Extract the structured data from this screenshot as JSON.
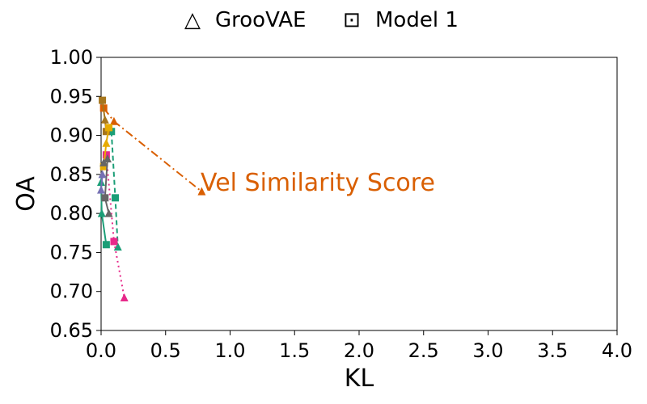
{
  "chart_data": {
    "type": "scatter",
    "xlabel": "KL",
    "ylabel": "OA",
    "xlim": [
      0.0,
      4.0
    ],
    "ylim": [
      0.65,
      1.0
    ],
    "xticks": [
      "0.0",
      "0.5",
      "1.0",
      "1.5",
      "2.0",
      "2.5",
      "3.0",
      "3.5",
      "4.0"
    ],
    "yticks": [
      "0.65",
      "0.70",
      "0.75",
      "0.80",
      "0.85",
      "0.90",
      "0.95",
      "1.00"
    ],
    "grid": false,
    "legend_position": "top-center",
    "legend": [
      {
        "symbol": "△",
        "label": "GrooVAE"
      },
      {
        "symbol": "⊡",
        "label": "Model 1"
      }
    ],
    "annotation": {
      "text": "Vel Similarity Score",
      "color": "#d95f02"
    },
    "series": [
      {
        "color": "#d95f02",
        "dash": "10,4,2,4",
        "points": [
          {
            "x": 0.02,
            "y": 0.935,
            "m": "s"
          },
          {
            "x": 0.1,
            "y": 0.918,
            "m": "t"
          },
          {
            "x": 0.78,
            "y": 0.828,
            "m": "t"
          }
        ]
      },
      {
        "color": "#1b9e77",
        "dash": "",
        "points": [
          {
            "x": 0.0,
            "y": 0.84,
            "m": "t"
          },
          {
            "x": 0.005,
            "y": 0.8,
            "m": "t"
          },
          {
            "x": 0.04,
            "y": 0.76,
            "m": "s"
          }
        ]
      },
      {
        "color": "#1b9e77",
        "dash": "6,4",
        "points": [
          {
            "x": 0.08,
            "y": 0.905,
            "m": "s"
          },
          {
            "x": 0.11,
            "y": 0.82,
            "m": "s"
          },
          {
            "x": 0.13,
            "y": 0.757,
            "m": "t"
          }
        ]
      },
      {
        "color": "#e7298a",
        "dash": "2,4",
        "points": [
          {
            "x": 0.04,
            "y": 0.875,
            "m": "s"
          },
          {
            "x": 0.1,
            "y": 0.764,
            "m": "s"
          },
          {
            "x": 0.18,
            "y": 0.692,
            "m": "t"
          }
        ]
      },
      {
        "color": "#a6761d",
        "dash": "",
        "points": [
          {
            "x": 0.01,
            "y": 0.945,
            "m": "s"
          },
          {
            "x": 0.03,
            "y": 0.92,
            "m": "t"
          },
          {
            "x": 0.04,
            "y": 0.905,
            "m": "s"
          }
        ]
      },
      {
        "color": "#e6ab02",
        "dash": "",
        "points": [
          {
            "x": 0.02,
            "y": 0.86,
            "m": "s"
          },
          {
            "x": 0.04,
            "y": 0.89,
            "m": "t"
          },
          {
            "x": 0.06,
            "y": 0.91,
            "m": "s"
          }
        ]
      },
      {
        "color": "#666666",
        "dash": "",
        "points": [
          {
            "x": 0.02,
            "y": 0.865,
            "m": "t"
          },
          {
            "x": 0.05,
            "y": 0.87,
            "m": "t"
          },
          {
            "x": 0.03,
            "y": 0.82,
            "m": "s"
          },
          {
            "x": 0.06,
            "y": 0.8,
            "m": "t"
          }
        ]
      },
      {
        "color": "#7570b3",
        "dash": "",
        "points": [
          {
            "x": 0.0,
            "y": 0.83,
            "m": "t"
          },
          {
            "x": 0.01,
            "y": 0.85,
            "m": "t"
          }
        ]
      }
    ]
  }
}
